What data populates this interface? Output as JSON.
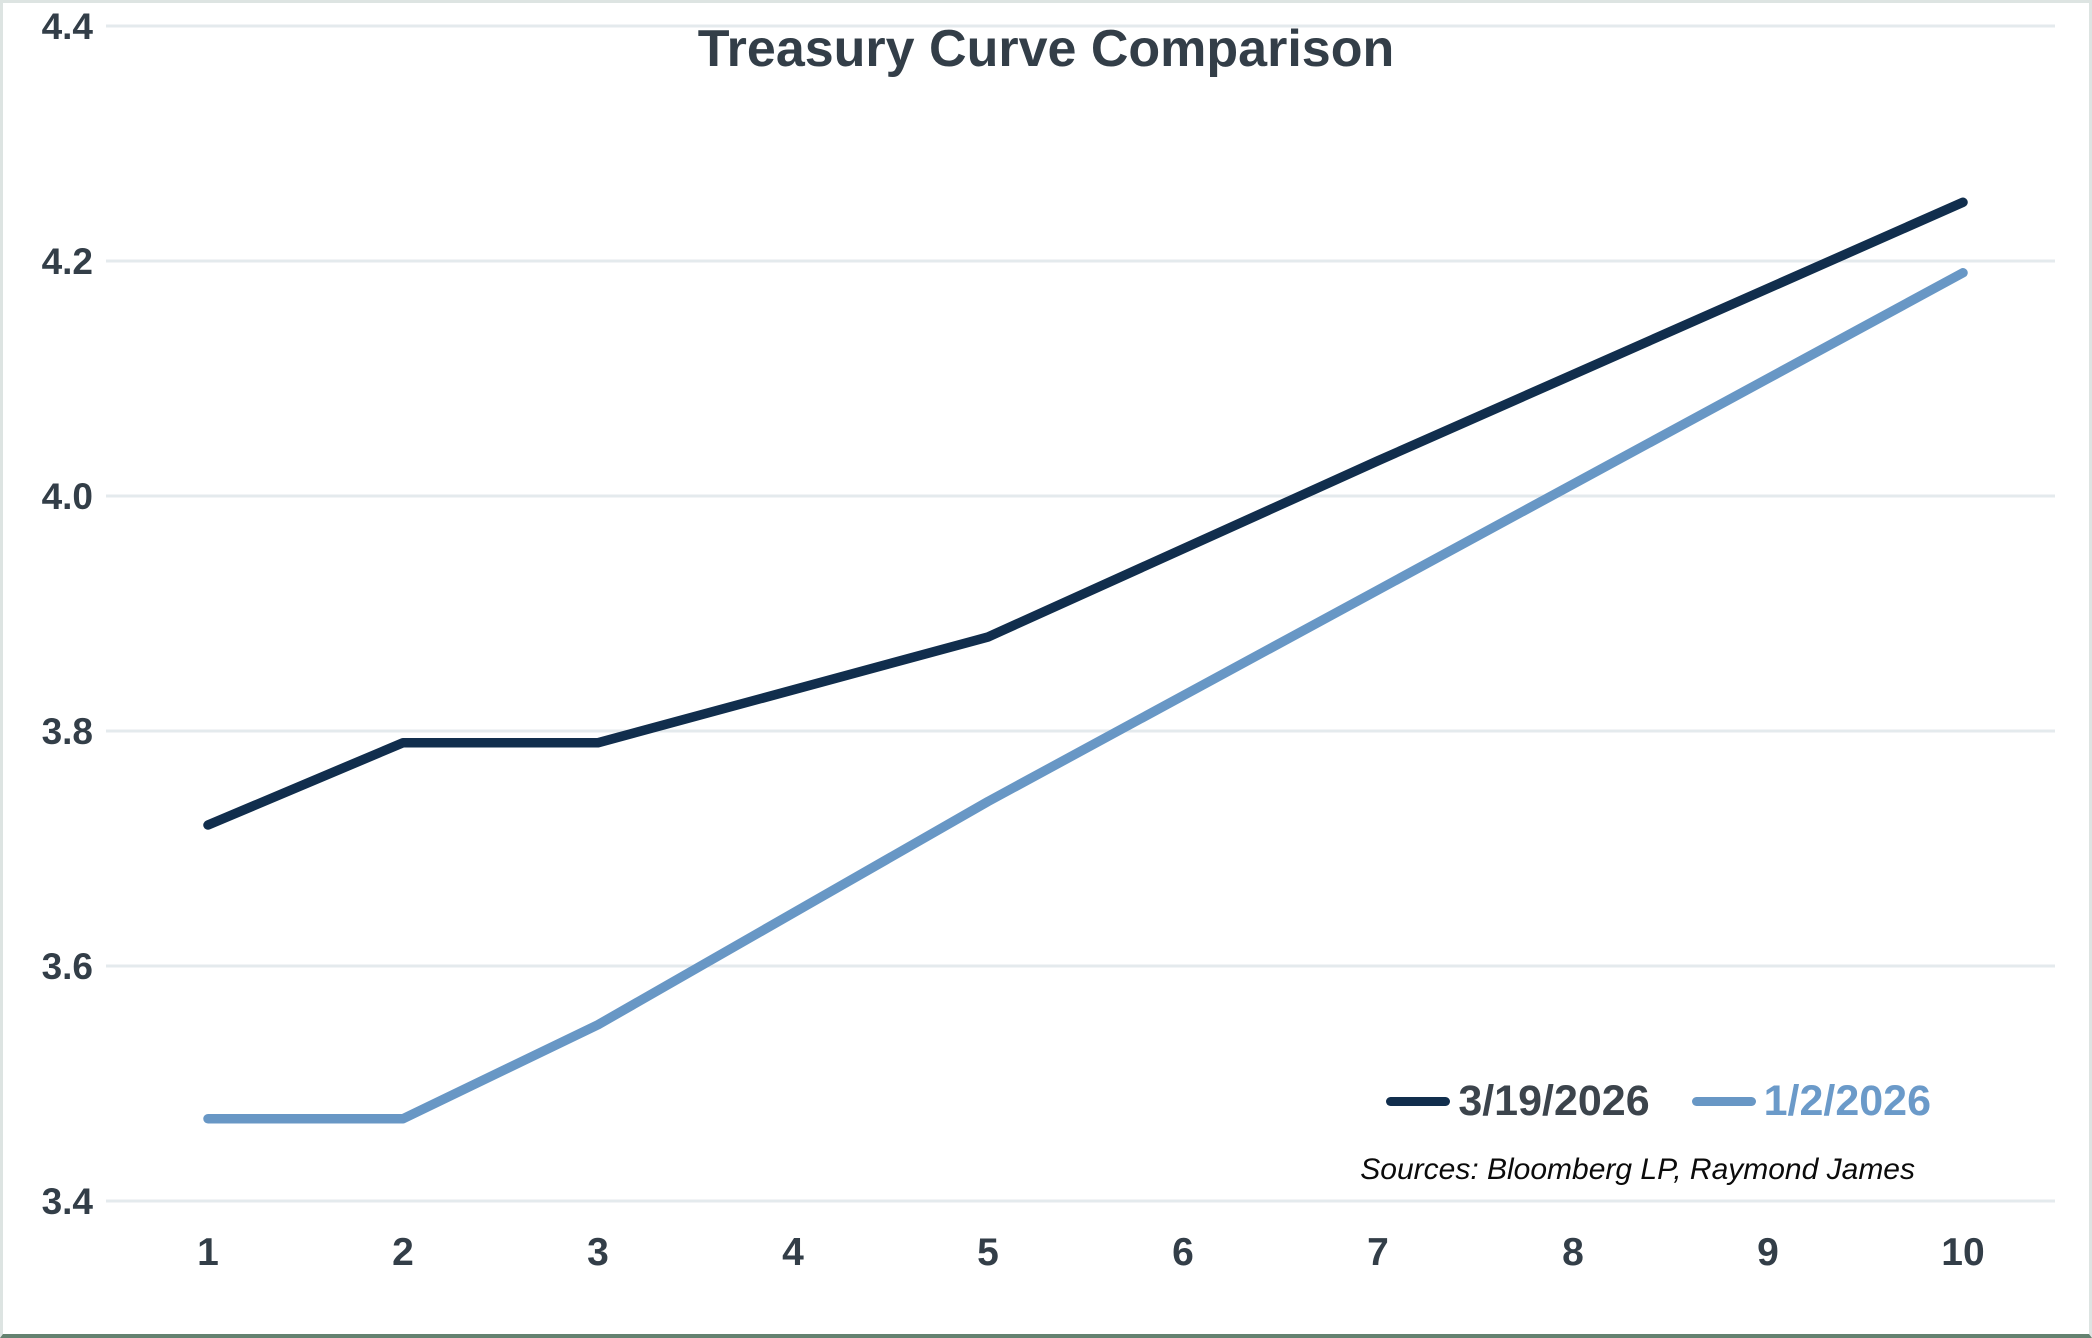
{
  "colors": {
    "background": "#ffffff",
    "frame_border": "#dde4e2",
    "frame_bottom_rule": "#648270",
    "grid": "#e4eaed",
    "axis_text": "#333e48",
    "title_text": "#333e48"
  },
  "chart_data": {
    "type": "line",
    "title": "Treasury Curve Comparison",
    "source_note": "Sources: Bloomberg LP, Raymond James",
    "xlabel": "",
    "ylabel": "",
    "xlim": [
      1,
      10
    ],
    "ylim": [
      3.4,
      4.4
    ],
    "xticks": [
      "1",
      "2",
      "3",
      "4",
      "5",
      "6",
      "7",
      "8",
      "9",
      "10"
    ],
    "yticks": [
      {
        "label": "3.4",
        "value": 3.4
      },
      {
        "label": "3.6",
        "value": 3.6
      },
      {
        "label": "3.8",
        "value": 3.8
      },
      {
        "label": "4.0",
        "value": 4.0
      },
      {
        "label": "4.2",
        "value": 4.2
      },
      {
        "label": "4.4",
        "value": 4.4
      }
    ],
    "grid": "horizontal",
    "legend_position": "inside-bottom-right",
    "series": [
      {
        "name": "3/19/2026",
        "color": "#112e4d",
        "legend_text_color": "#3c444c",
        "x": [
          1,
          2,
          3,
          5,
          7,
          10
        ],
        "values": [
          3.72,
          3.79,
          3.79,
          3.88,
          4.03,
          4.25
        ]
      },
      {
        "name": "1/2/2026",
        "color": "#6897c5",
        "legend_text_color": "#6b9ac9",
        "x": [
          1,
          2,
          3,
          5,
          7,
          10
        ],
        "values": [
          3.47,
          3.47,
          3.55,
          3.74,
          3.92,
          4.19
        ]
      }
    ]
  }
}
